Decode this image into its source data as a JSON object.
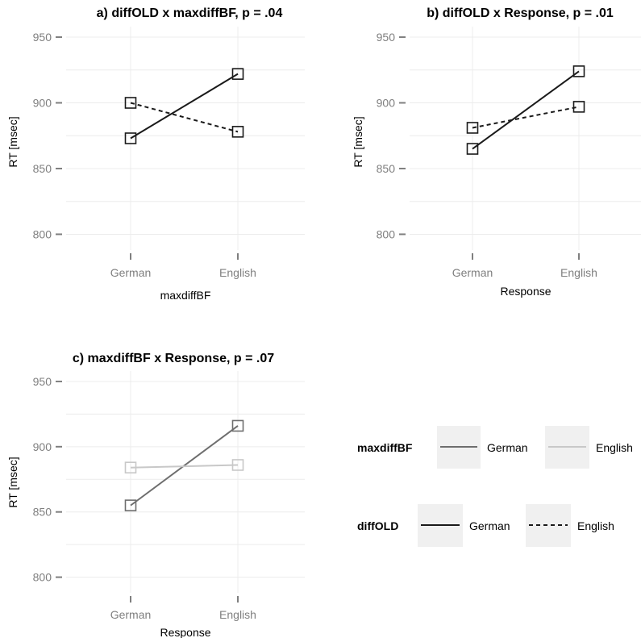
{
  "chart_data": [
    {
      "type": "line",
      "title": "a) diffOLD x maxdiffBF, p = .04",
      "xlabel": "maxdiffBF",
      "ylabel": "RT [msec]",
      "categories": [
        "German",
        "English"
      ],
      "yticks": [
        800,
        850,
        900,
        950
      ],
      "ylim": [
        788,
        958
      ],
      "grid": true,
      "series": [
        {
          "name": "German",
          "group": "diffOLD",
          "values": [
            873,
            922
          ],
          "color": "#1a1a1a",
          "dash": "solid"
        },
        {
          "name": "English",
          "group": "diffOLD",
          "values": [
            900,
            878
          ],
          "color": "#1a1a1a",
          "dash": "dashed"
        }
      ]
    },
    {
      "type": "line",
      "title": "b) diffOLD x Response, p = .01",
      "xlabel": "Response",
      "ylabel": "RT [msec]",
      "categories": [
        "German",
        "English"
      ],
      "yticks": [
        800,
        850,
        900,
        950
      ],
      "ylim": [
        788,
        958
      ],
      "grid": true,
      "series": [
        {
          "name": "German",
          "group": "diffOLD",
          "values": [
            865,
            924
          ],
          "color": "#1a1a1a",
          "dash": "solid"
        },
        {
          "name": "English",
          "group": "diffOLD",
          "values": [
            881,
            897
          ],
          "color": "#1a1a1a",
          "dash": "dashed"
        }
      ]
    },
    {
      "type": "line",
      "title": "c) maxdiffBF x Response, p = .07",
      "xlabel": "Response",
      "ylabel": "RT [msec]",
      "categories": [
        "German",
        "English"
      ],
      "yticks": [
        800,
        850,
        900,
        950
      ],
      "ylim": [
        788,
        958
      ],
      "grid": true,
      "series": [
        {
          "name": "German",
          "group": "maxdiffBF",
          "values": [
            855,
            916
          ],
          "color": "#6e6e6e",
          "dash": "solid"
        },
        {
          "name": "English",
          "group": "maxdiffBF",
          "values": [
            884,
            886
          ],
          "color": "#c8c8c8",
          "dash": "solid"
        }
      ]
    }
  ],
  "legend": {
    "groups": [
      {
        "title": "maxdiffBF",
        "entries": [
          {
            "label": "German",
            "color": "#6e6e6e",
            "dash": "solid"
          },
          {
            "label": "English",
            "color": "#c8c8c8",
            "dash": "solid"
          }
        ]
      },
      {
        "title": "diffOLD",
        "entries": [
          {
            "label": "German",
            "color": "#1a1a1a",
            "dash": "solid"
          },
          {
            "label": "English",
            "color": "#1a1a1a",
            "dash": "dashed"
          }
        ]
      }
    ],
    "key_background": "#f0f0f0"
  }
}
